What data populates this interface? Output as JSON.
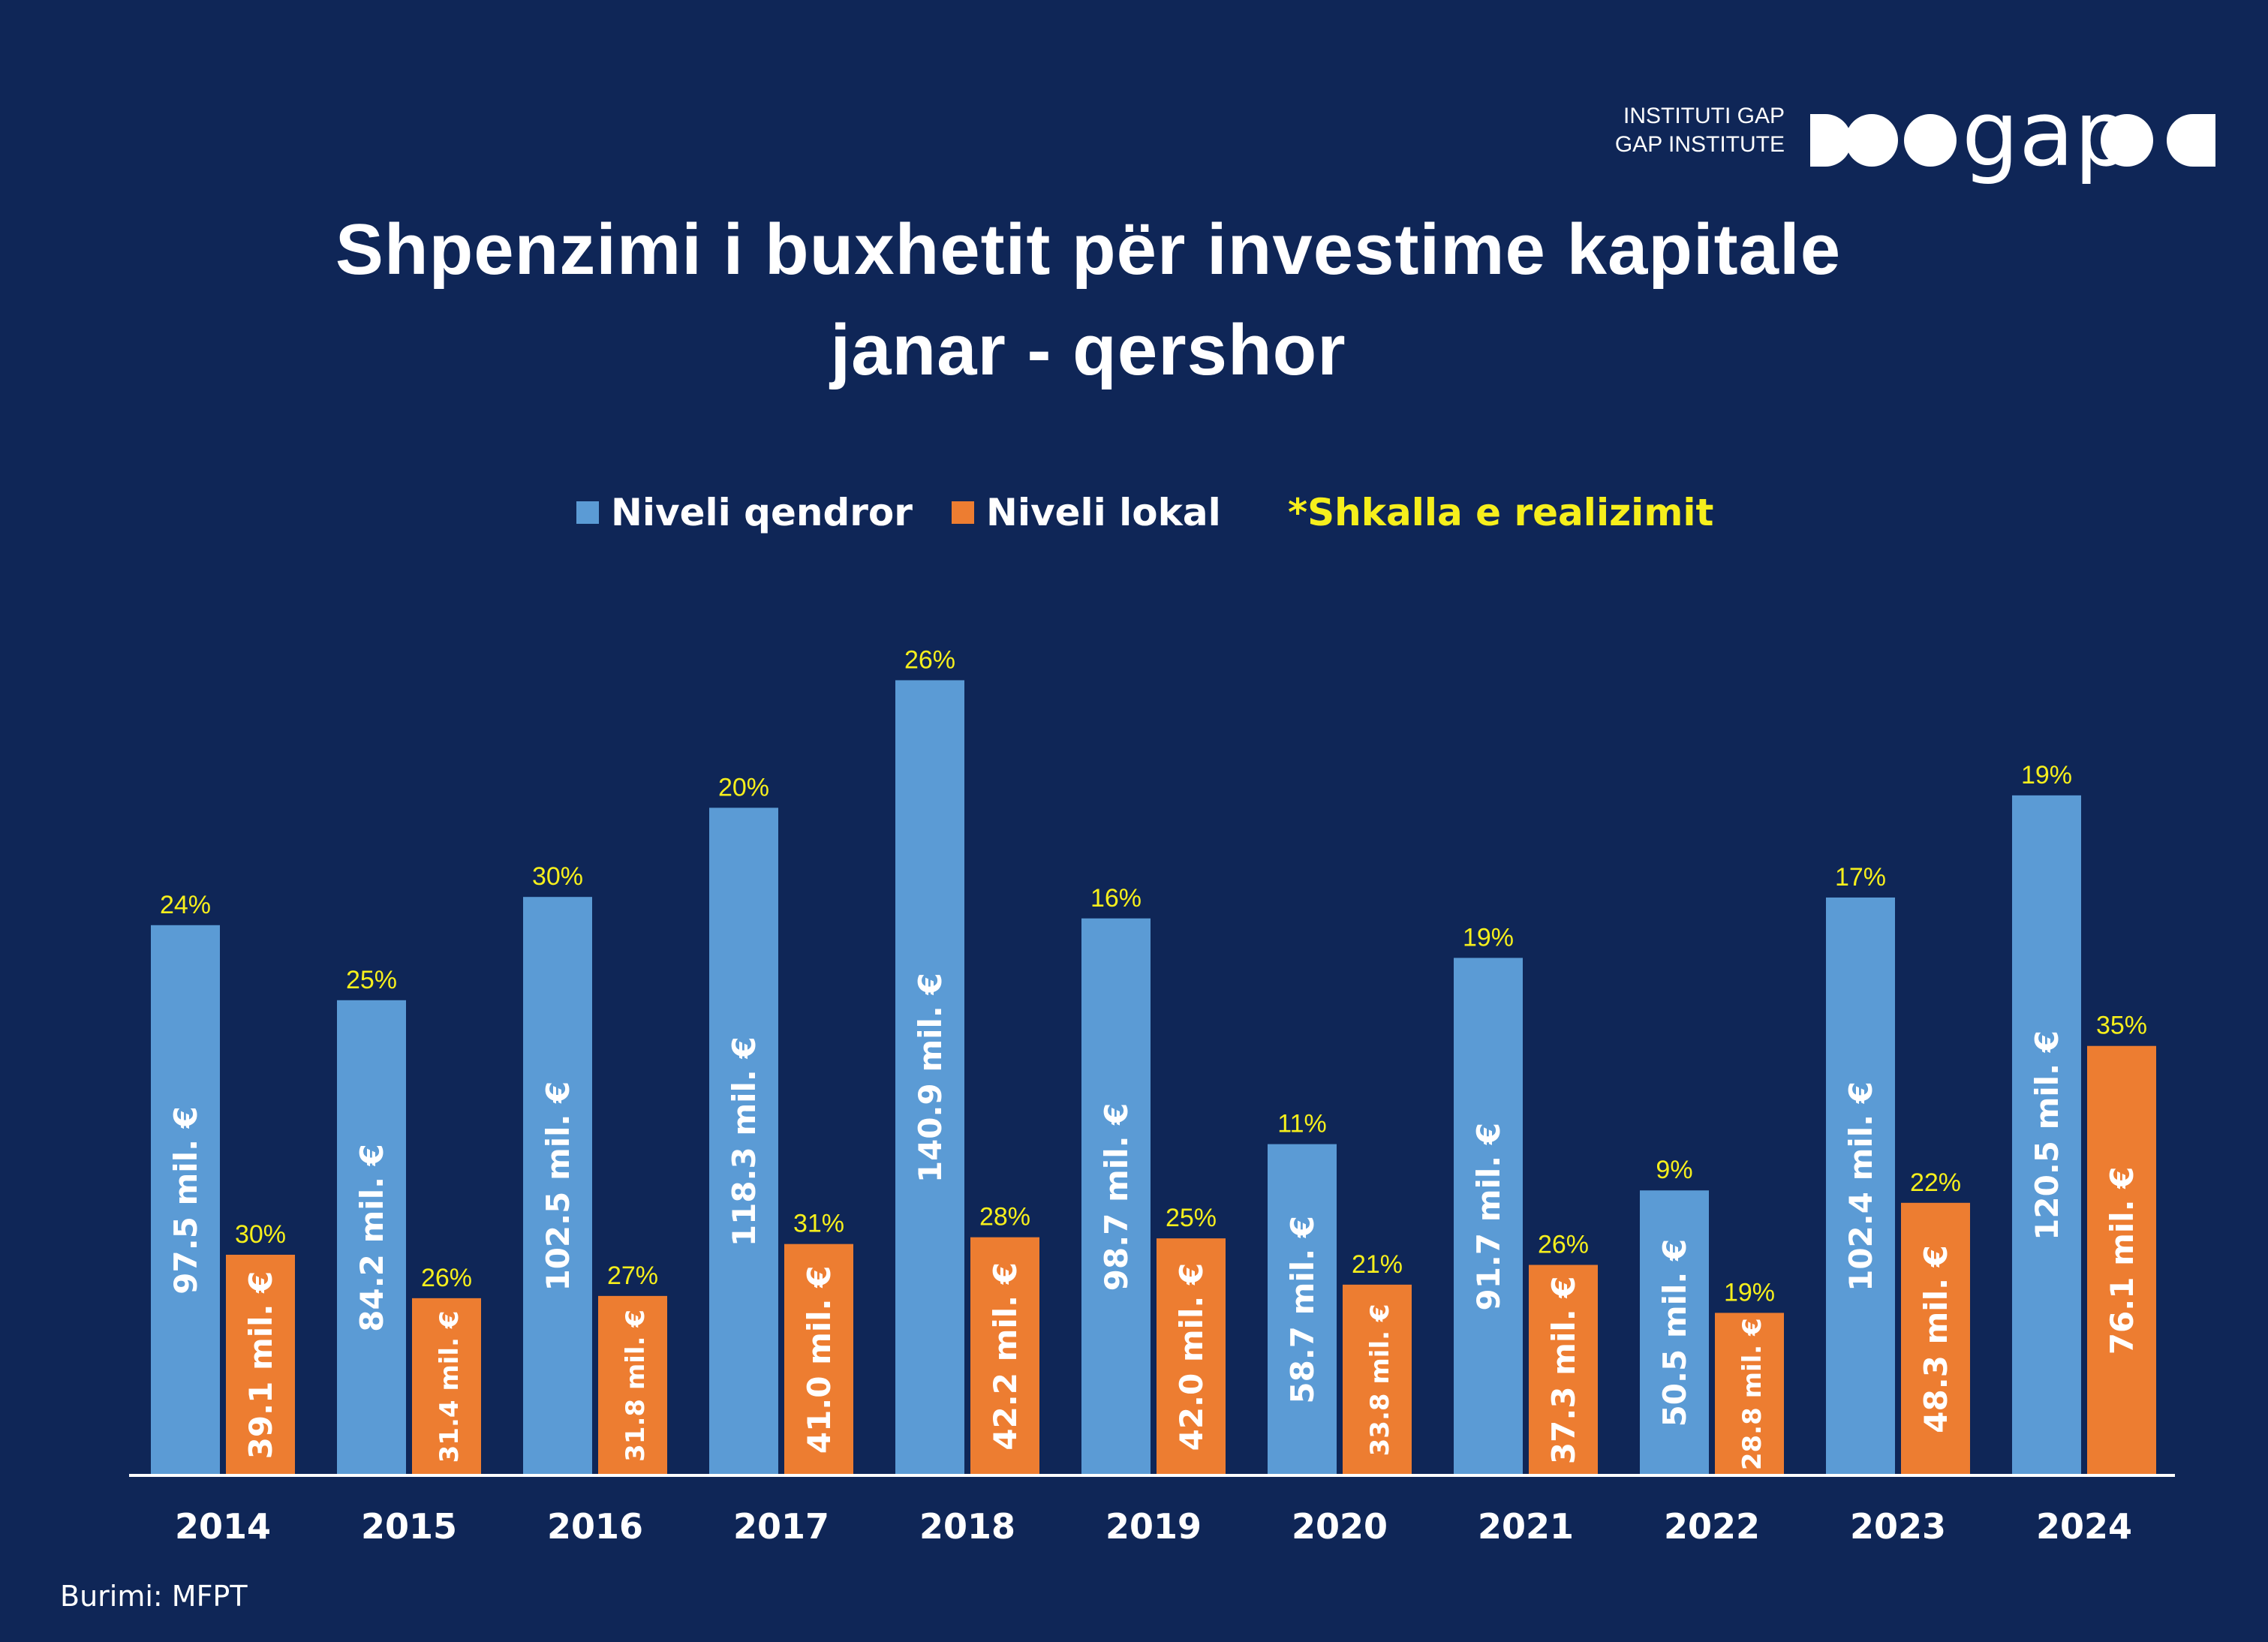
{
  "logo": {
    "line1": "INSTITUTI GAP",
    "line2": "GAP INSTITUTE",
    "wordmark": "gap"
  },
  "title_line1": "Shpenzimi i buxhetit për investime kapitale",
  "title_line2": "janar - qershor",
  "legend": {
    "central": "Niveli qendror",
    "local": "Niveli lokal",
    "rate": "*Shkalla e realizimit"
  },
  "source": "Burimi: MFPT",
  "colors": {
    "background": "#0f2657",
    "central": "#5b9bd5",
    "local": "#ed7d31",
    "rate_label": "#f6ef1c",
    "text": "#ffffff"
  },
  "chart_data": {
    "type": "bar",
    "title": "Shpenzimi i buxhetit për investime kapitale janar - qershor",
    "categories": [
      "2014",
      "2015",
      "2016",
      "2017",
      "2018",
      "2019",
      "2020",
      "2021",
      "2022",
      "2023",
      "2024"
    ],
    "unit": "mil. €",
    "ylim": [
      0,
      150
    ],
    "grid": false,
    "legend_position": "top",
    "series": [
      {
        "name": "Niveli qendror",
        "values": [
          97.5,
          84.2,
          102.5,
          118.3,
          140.9,
          98.7,
          58.7,
          91.7,
          50.5,
          102.4,
          120.5
        ],
        "value_labels": [
          "97.5 mil. €",
          "84.2 mil. €",
          "102.5 mil. €",
          "118.3 mil. €",
          "140.9 mil. €",
          "98.7 mil. €",
          "58.7 mil. €",
          "91.7 mil. €",
          "50.5 mil. €",
          "102.4 mil. €",
          "120.5 mil. €"
        ],
        "rate_labels": [
          "24%",
          "25%",
          "30%",
          "20%",
          "26%",
          "16%",
          "11%",
          "19%",
          "9%",
          "17%",
          "19%"
        ]
      },
      {
        "name": "Niveli lokal",
        "values": [
          39.1,
          31.4,
          31.8,
          41.0,
          42.2,
          42.0,
          33.8,
          37.3,
          28.8,
          48.3,
          76.1
        ],
        "value_labels": [
          "39.1 mil. €",
          "31.4 mil. €",
          "31.8 mil. €",
          "41.0 mil. €",
          "42.2 mil. €",
          "42.0 mil. €",
          "33.8 mil. €",
          "37.3 mil. €",
          "28.8 mil. €",
          "48.3 mil. €",
          "76.1 mil. €"
        ],
        "rate_labels": [
          "30%",
          "26%",
          "27%",
          "31%",
          "28%",
          "25%",
          "21%",
          "26%",
          "19%",
          "22%",
          "35%"
        ]
      }
    ],
    "rate_legend": "*Shkalla e realizimit"
  }
}
